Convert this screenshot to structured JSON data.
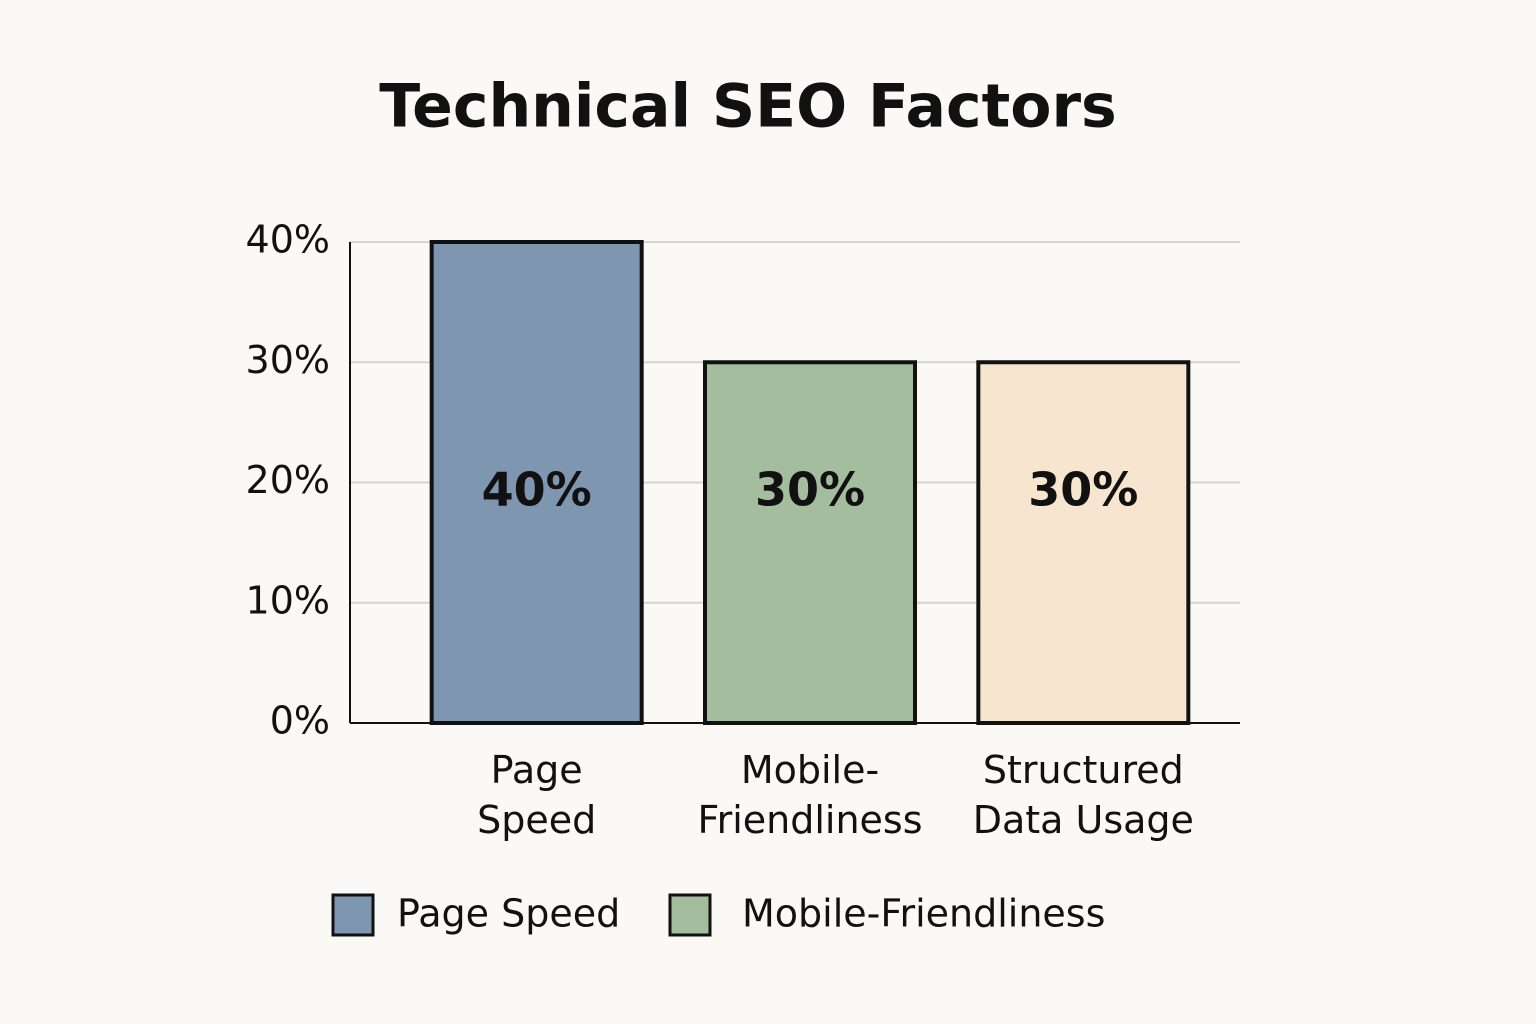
{
  "chart_data": {
    "type": "bar",
    "title": "Technical SEO Factors",
    "categories": [
      "Page\nSpeed",
      "Mobile-\nFriendliness",
      "Structured\nData Usage"
    ],
    "values": [
      40,
      30,
      30
    ],
    "value_labels": [
      "40%",
      "30%",
      "30%"
    ],
    "colors": [
      "#7f96b0",
      "#a3bd9e",
      "#f7e6cf"
    ],
    "ylim": [
      0,
      40
    ],
    "yticks": [
      {
        "value": 0,
        "label": "0%"
      },
      {
        "value": 10,
        "label": "10%"
      },
      {
        "value": 20,
        "label": "20%"
      },
      {
        "value": 30,
        "label": "30%"
      },
      {
        "value": 40,
        "label": "40%"
      }
    ],
    "grid": true,
    "legend": [
      {
        "name": "Page Speed",
        "color": "#7f96b0"
      },
      {
        "name": "Mobile-Friendliness",
        "color": "#a3bd9e"
      }
    ]
  }
}
